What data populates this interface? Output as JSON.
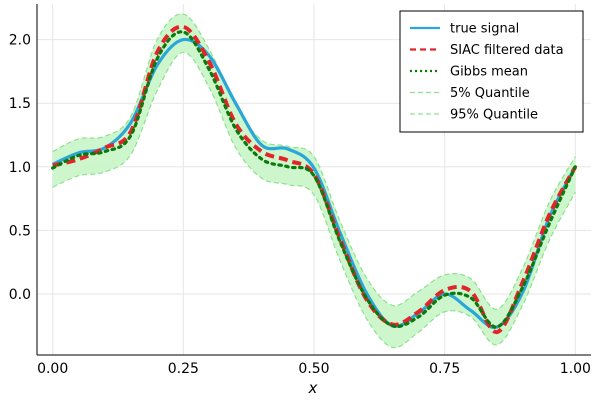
{
  "chart_data": {
    "type": "line",
    "title": "",
    "xlabel": "x",
    "ylabel": "",
    "xlim": [
      -0.03,
      1.03
    ],
    "ylim": [
      -0.48,
      2.28
    ],
    "xticks": [
      0.0,
      0.25,
      0.5,
      0.75,
      1.0
    ],
    "xtick_labels": [
      "0.00",
      "0.25",
      "0.50",
      "0.75",
      "1.00"
    ],
    "yticks": [
      0.0,
      0.5,
      1.0,
      1.5,
      2.0
    ],
    "ytick_labels": [
      "0.0",
      "0.5",
      "1.0",
      "1.5",
      "2.0"
    ],
    "grid": true,
    "legend_position": "top-right",
    "x": [
      0.0,
      0.05,
      0.1,
      0.15,
      0.2,
      0.25,
      0.3,
      0.35,
      0.4,
      0.45,
      0.5,
      0.55,
      0.6,
      0.65,
      0.7,
      0.75,
      0.8,
      0.85,
      0.9,
      0.95,
      1.0
    ],
    "series": [
      {
        "name": "true signal",
        "color": "#2aa7d8",
        "style": "solid",
        "values": [
          1.02,
          1.11,
          1.15,
          1.35,
          1.8,
          2.0,
          1.87,
          1.5,
          1.17,
          1.14,
          0.99,
          0.48,
          0.01,
          -0.25,
          -0.15,
          0.0,
          -0.13,
          -0.26,
          0.02,
          0.6,
          1.0
        ]
      },
      {
        "name": "SIAC filtered data",
        "color": "#e2242b",
        "style": "dashed",
        "values": [
          1.01,
          1.06,
          1.15,
          1.28,
          1.9,
          2.1,
          1.82,
          1.34,
          1.12,
          1.05,
          0.94,
          0.43,
          -0.04,
          -0.24,
          -0.14,
          0.03,
          0.02,
          -0.3,
          0.1,
          0.62,
          1.0
        ]
      },
      {
        "name": "Gibbs mean",
        "color": "#0a7a0a",
        "style": "dotted",
        "values": [
          0.99,
          1.09,
          1.12,
          1.25,
          1.85,
          2.06,
          1.76,
          1.3,
          1.06,
          1.0,
          0.93,
          0.41,
          -0.03,
          -0.25,
          -0.18,
          -0.01,
          -0.03,
          -0.26,
          0.06,
          0.55,
          1.0
        ]
      },
      {
        "name": "5% Quantile",
        "color": "#8fe08f",
        "style": "dashed-thin",
        "values": [
          0.84,
          0.93,
          0.96,
          1.1,
          1.6,
          1.9,
          1.62,
          1.15,
          0.91,
          0.86,
          0.78,
          0.26,
          -0.19,
          -0.42,
          -0.3,
          -0.14,
          -0.18,
          -0.4,
          -0.08,
          0.42,
          0.8
        ]
      },
      {
        "name": "95% Quantile",
        "color": "#8fe08f",
        "style": "dashed-thin",
        "values": [
          1.12,
          1.22,
          1.24,
          1.4,
          2.0,
          2.2,
          1.92,
          1.48,
          1.21,
          1.16,
          1.08,
          0.57,
          0.13,
          -0.09,
          0.02,
          0.15,
          0.12,
          -0.12,
          0.21,
          0.72,
          1.08
        ]
      }
    ],
    "band": {
      "lower_series": "5% Quantile",
      "upper_series": "95% Quantile",
      "fill_color": "#c8f5c8"
    }
  }
}
